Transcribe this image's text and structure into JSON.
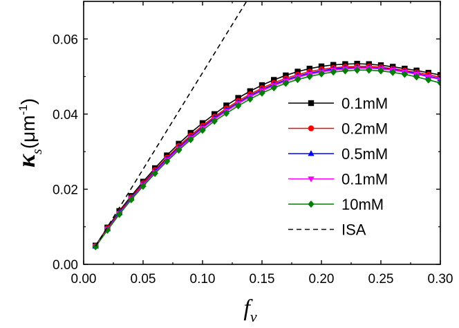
{
  "chart_data": {
    "type": "line",
    "xlabel": {
      "main": "f",
      "sub": "v"
    },
    "ylabel": {
      "main": "κ",
      "sub": "s",
      "unit": "(μm",
      "exp": "-1",
      "close": ")"
    },
    "xlim": [
      0.0,
      0.3
    ],
    "ylim": [
      0.0,
      0.07
    ],
    "x_ticks": [
      "0.00",
      "0.05",
      "0.10",
      "0.15",
      "0.20",
      "0.25",
      "0.30"
    ],
    "y_ticks": [
      "0.00",
      "0.02",
      "0.04",
      "0.06"
    ],
    "grid": false,
    "legend_position": "right",
    "x": [
      0.01,
      0.02,
      0.03,
      0.04,
      0.05,
      0.06,
      0.07,
      0.08,
      0.09,
      0.1,
      0.11,
      0.12,
      0.13,
      0.14,
      0.15,
      0.16,
      0.17,
      0.18,
      0.19,
      0.2,
      0.21,
      0.22,
      0.23,
      0.24,
      0.25,
      0.26,
      0.27,
      0.28,
      0.29,
      0.3
    ],
    "series": [
      {
        "name": "0.1mM",
        "color": "#000000",
        "marker": "square",
        "values": [
          0.005,
          0.0098,
          0.0142,
          0.0182,
          0.022,
          0.0256,
          0.029,
          0.0321,
          0.035,
          0.0376,
          0.04,
          0.0423,
          0.0443,
          0.0461,
          0.0477,
          0.0491,
          0.0503,
          0.0513,
          0.0521,
          0.0527,
          0.0531,
          0.0533,
          0.0534,
          0.0533,
          0.053,
          0.0526,
          0.0521,
          0.0516,
          0.051,
          0.0504
        ]
      },
      {
        "name": "0.2mM",
        "color": "#ff0000",
        "marker": "circle",
        "values": [
          0.0049,
          0.0096,
          0.0139,
          0.0178,
          0.0216,
          0.0251,
          0.0284,
          0.0315,
          0.0343,
          0.0369,
          0.0393,
          0.0415,
          0.0435,
          0.0453,
          0.0469,
          0.0483,
          0.0495,
          0.0505,
          0.0513,
          0.0519,
          0.0523,
          0.0526,
          0.0527,
          0.0527,
          0.0525,
          0.0521,
          0.0516,
          0.0511,
          0.0505,
          0.0498
        ]
      },
      {
        "name": "0.5mM",
        "color": "#0000ff",
        "marker": "triangle-up",
        "values": [
          0.0048,
          0.0094,
          0.0137,
          0.0176,
          0.0213,
          0.0248,
          0.0281,
          0.0311,
          0.0339,
          0.0365,
          0.0389,
          0.0411,
          0.0431,
          0.0449,
          0.0465,
          0.0479,
          0.0491,
          0.0501,
          0.0509,
          0.0515,
          0.052,
          0.0523,
          0.0524,
          0.0524,
          0.0522,
          0.0519,
          0.0514,
          0.0508,
          0.0501,
          0.0494
        ]
      },
      {
        "name": "0.1mM",
        "color": "#ff00ff",
        "marker": "triangle-down",
        "values": [
          0.0048,
          0.0093,
          0.0135,
          0.0174,
          0.0211,
          0.0245,
          0.0278,
          0.0308,
          0.0336,
          0.0362,
          0.0386,
          0.0408,
          0.0428,
          0.0446,
          0.0462,
          0.0476,
          0.0488,
          0.0498,
          0.0506,
          0.0512,
          0.0517,
          0.052,
          0.0522,
          0.0522,
          0.052,
          0.0517,
          0.0512,
          0.0506,
          0.0499,
          0.0492
        ]
      },
      {
        "name": "10mM",
        "color": "#008000",
        "marker": "diamond",
        "values": [
          0.0047,
          0.0091,
          0.0133,
          0.0172,
          0.0208,
          0.0242,
          0.0274,
          0.0304,
          0.0332,
          0.0357,
          0.0381,
          0.0402,
          0.0422,
          0.044,
          0.0456,
          0.047,
          0.0482,
          0.0492,
          0.05,
          0.0507,
          0.0512,
          0.0515,
          0.0517,
          0.0517,
          0.0515,
          0.0511,
          0.0506,
          0.0499,
          0.0491,
          0.0483
        ]
      },
      {
        "name": "ISA",
        "color": "#000000",
        "marker": "none",
        "dashed": true,
        "x": [
          0.01,
          0.137
        ],
        "values": [
          0.0048,
          0.07
        ]
      }
    ]
  }
}
